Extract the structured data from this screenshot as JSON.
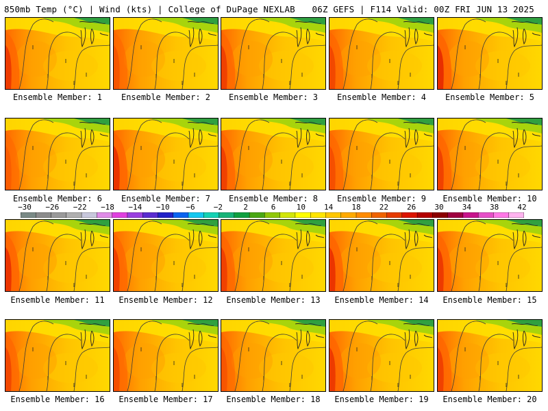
{
  "header": {
    "left_title": "850mb Temp (°C) | Wind (kts) | College of DuPage NEXLAB",
    "right_title": "06Z GEFS | F114 Valid: 00Z FRI JUN 13 2025"
  },
  "colorbar": {
    "tick_labels": [
      "−30",
      "−26",
      "−22",
      "−18",
      "−14",
      "−10",
      "−6",
      "−2",
      "2",
      "6",
      "10",
      "14",
      "18",
      "22",
      "26",
      "30",
      "34",
      "38",
      "42"
    ],
    "colors": [
      "#7a8a86",
      "#8c8c8c",
      "#9a9a9a",
      "#b0b0b0",
      "#c8c8dc",
      "#e08ce8",
      "#e040e0",
      "#9a40e0",
      "#5a2cd0",
      "#2222c8",
      "#0a64f0",
      "#14c8f0",
      "#16d2b4",
      "#18b478",
      "#10a040",
      "#4aa814",
      "#90c80a",
      "#d2e60a",
      "#ffff00",
      "#ffe600",
      "#ffc800",
      "#ffaa00",
      "#ff8c00",
      "#f06400",
      "#e63c00",
      "#dc1400",
      "#b40000",
      "#8c0000",
      "#a00040",
      "#c8148c",
      "#e650c8",
      "#ff78e6",
      "#ffb4f0"
    ]
  },
  "panels": [
    {
      "label": "Ensemble Member: 1"
    },
    {
      "label": "Ensemble Member: 2"
    },
    {
      "label": "Ensemble Member: 3"
    },
    {
      "label": "Ensemble Member: 4"
    },
    {
      "label": "Ensemble Member: 5"
    },
    {
      "label": "Ensemble Member: 6"
    },
    {
      "label": "Ensemble Member: 7"
    },
    {
      "label": "Ensemble Member: 8"
    },
    {
      "label": "Ensemble Member: 9"
    },
    {
      "label": "Ensemble Member: 10"
    },
    {
      "label": "Ensemble Member: 11"
    },
    {
      "label": "Ensemble Member: 12"
    },
    {
      "label": "Ensemble Member: 13"
    },
    {
      "label": "Ensemble Member: 14"
    },
    {
      "label": "Ensemble Member: 15"
    },
    {
      "label": "Ensemble Member: 16"
    },
    {
      "label": "Ensemble Member: 17"
    },
    {
      "label": "Ensemble Member: 18"
    },
    {
      "label": "Ensemble Member: 19"
    },
    {
      "label": "Ensemble Member: 20"
    }
  ]
}
